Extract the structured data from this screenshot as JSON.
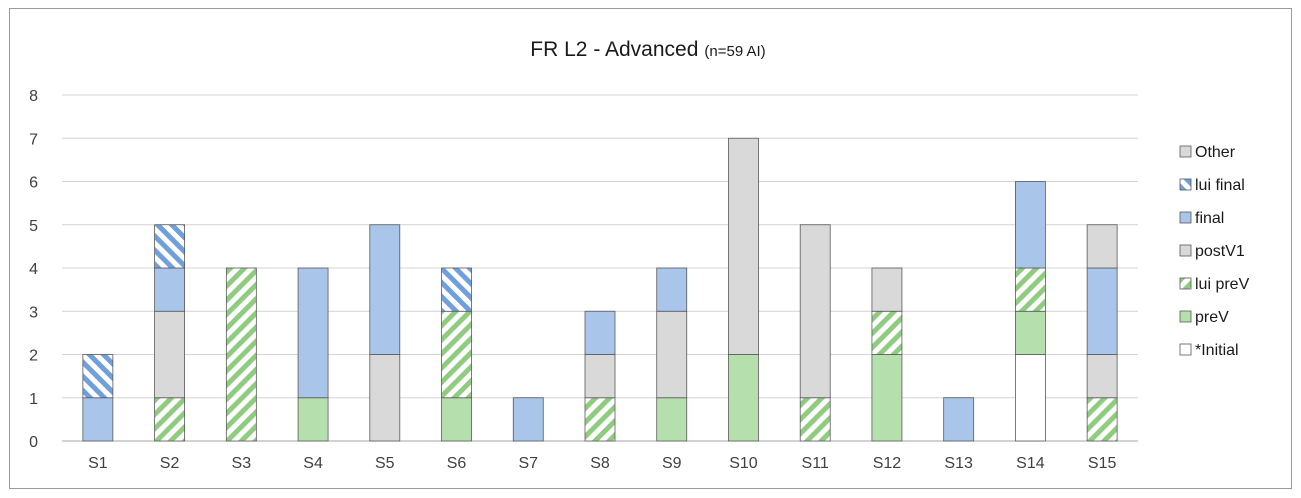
{
  "chart_data": {
    "type": "bar",
    "stacked": true,
    "title": "FR L2 - Advanced",
    "subtitle": "(n=59 AI)",
    "ylim": [
      0,
      8
    ],
    "yticks": [
      0,
      1,
      2,
      3,
      4,
      5,
      6,
      7,
      8
    ],
    "grid": true,
    "legend_position": "right",
    "categories": [
      "S1",
      "S2",
      "S3",
      "S4",
      "S5",
      "S6",
      "S7",
      "S8",
      "S9",
      "S10",
      "S11",
      "S12",
      "S13",
      "S14",
      "S15"
    ],
    "series": [
      {
        "name": "*Initial",
        "color": "#ffffff",
        "pattern": "solid",
        "values": [
          0,
          0,
          0,
          0,
          0,
          0,
          0,
          0,
          0,
          0,
          0,
          0,
          0,
          2,
          0
        ]
      },
      {
        "name": "preV",
        "color": "#b5e0ae",
        "pattern": "solid",
        "values": [
          0,
          0,
          0,
          1,
          0,
          1,
          0,
          0,
          1,
          2,
          0,
          2,
          0,
          1,
          0
        ]
      },
      {
        "name": "lui preV",
        "color": "#8fcc80",
        "pattern": "hatched",
        "values": [
          0,
          1,
          4,
          0,
          0,
          2,
          0,
          1,
          0,
          0,
          1,
          1,
          0,
          1,
          1
        ]
      },
      {
        "name": "postV1",
        "color": "#d9d9d9",
        "pattern": "solid",
        "values": [
          0,
          2,
          0,
          0,
          2,
          0,
          0,
          1,
          2,
          5,
          4,
          1,
          0,
          0,
          1
        ]
      },
      {
        "name": "final",
        "color": "#a9c5ea",
        "pattern": "solid",
        "values": [
          1,
          1,
          0,
          3,
          3,
          0,
          1,
          1,
          1,
          0,
          0,
          0,
          1,
          2,
          2
        ]
      },
      {
        "name": "lui final",
        "color": "#6f9fdc",
        "pattern": "hatched",
        "values": [
          1,
          1,
          0,
          0,
          0,
          1,
          0,
          0,
          0,
          0,
          0,
          0,
          0,
          0,
          0
        ]
      },
      {
        "name": "Other",
        "color": "#d9d9d9",
        "pattern": "solid",
        "values": [
          0,
          0,
          0,
          0,
          0,
          0,
          0,
          0,
          0,
          0,
          0,
          0,
          0,
          0,
          1
        ]
      }
    ]
  }
}
